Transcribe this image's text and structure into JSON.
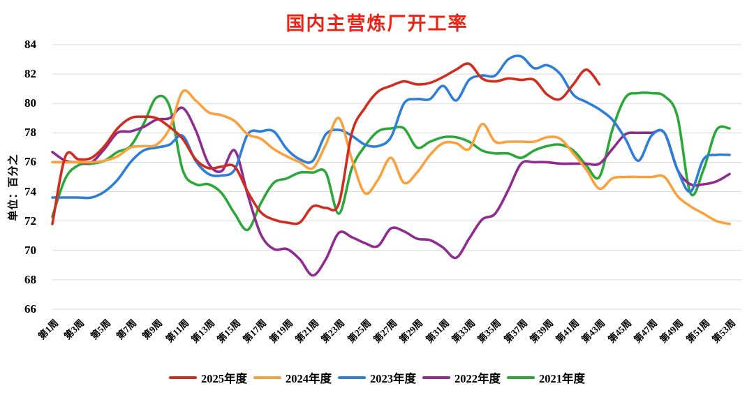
{
  "chart_data": {
    "type": "line",
    "title": "国内主营炼厂开工率",
    "title_color": "#ea2417",
    "ylabel": "单位：百分之",
    "ylim": [
      66,
      84
    ],
    "ytick_step": 2,
    "grid": "horizontal",
    "gridline_color": "#d9d9d9",
    "legend_position": "bottom",
    "weeks_total": 53,
    "x_start_week": 1,
    "xtick_labels": [
      "第1周",
      "第3周",
      "第5周",
      "第7周",
      "第9周",
      "第11周",
      "第13周",
      "第15周",
      "第17周",
      "第19周",
      "第21周",
      "第23周",
      "第25周",
      "第27周",
      "第29周",
      "第31周",
      "第33周",
      "第35周",
      "第37周",
      "第39周",
      "第41周",
      "第43周",
      "第45周",
      "第47周",
      "第49周",
      "第51周",
      "第53周"
    ],
    "series": [
      {
        "name": "2025年度",
        "color": "#d02d21",
        "values": [
          71.8,
          76.4,
          76.2,
          76.3,
          77.1,
          78.3,
          79.0,
          79.1,
          79.0,
          78.4,
          77.6,
          76.2,
          75.6,
          75.7,
          75.7,
          74.0,
          72.6,
          72.1,
          71.9,
          71.9,
          73.0,
          72.9,
          73.2,
          78.0,
          79.7,
          80.8,
          81.2,
          81.5,
          81.3,
          81.4,
          81.8,
          82.3,
          82.7,
          81.7,
          81.5,
          81.7,
          81.6,
          81.6,
          80.6,
          80.3,
          81.3,
          82.3,
          81.3
        ]
      },
      {
        "name": "2024年度",
        "color": "#f9a13c",
        "values": [
          76.0,
          76.0,
          76.0,
          76.0,
          76.1,
          76.4,
          77.0,
          77.1,
          77.2,
          78.3,
          80.8,
          80.2,
          79.4,
          79.2,
          78.8,
          77.9,
          77.6,
          76.9,
          76.4,
          76.0,
          75.6,
          77.2,
          79.0,
          76.2,
          73.9,
          74.8,
          76.3,
          74.6,
          75.3,
          76.5,
          77.3,
          77.3,
          76.9,
          78.6,
          77.4,
          77.4,
          77.4,
          77.4,
          77.7,
          77.6,
          76.6,
          75.5,
          74.2,
          74.9,
          75.0,
          75.0,
          75.0,
          75.0,
          73.7,
          73.0,
          72.5,
          72.0,
          71.8
        ]
      },
      {
        "name": "2023年度",
        "color": "#2e7ed8",
        "values": [
          73.6,
          73.6,
          73.6,
          73.6,
          74.0,
          74.8,
          76.0,
          76.8,
          77.0,
          77.2,
          77.8,
          76.1,
          75.2,
          75.1,
          75.5,
          77.9,
          78.1,
          78.1,
          76.9,
          76.2,
          76.1,
          77.9,
          78.2,
          77.8,
          77.2,
          77.1,
          77.7,
          80.0,
          80.3,
          80.3,
          81.2,
          80.2,
          81.6,
          81.9,
          81.9,
          83.0,
          83.2,
          82.4,
          82.6,
          82.0,
          80.6,
          80.1,
          79.6,
          78.9,
          77.6,
          76.1,
          77.8,
          78.0,
          75.5,
          74.0,
          76.2,
          76.5,
          76.5
        ]
      },
      {
        "name": "2022年度",
        "color": "#8e2c90",
        "values": [
          76.7,
          76.1,
          76.0,
          76.0,
          76.9,
          78.0,
          78.1,
          78.4,
          78.9,
          79.0,
          79.7,
          78.2,
          75.9,
          75.4,
          76.8,
          73.8,
          71.1,
          70.1,
          70.1,
          69.4,
          68.3,
          69.4,
          71.2,
          70.9,
          70.5,
          70.3,
          71.5,
          71.3,
          70.8,
          70.7,
          70.2,
          69.5,
          70.8,
          72.1,
          72.5,
          74.1,
          75.9,
          76.0,
          76.0,
          75.9,
          75.9,
          75.9,
          75.9,
          76.9,
          77.9,
          78.0,
          78.0,
          78.0,
          75.5,
          74.5,
          74.5,
          74.7,
          75.2
        ]
      },
      {
        "name": "2021年度",
        "color": "#2ca83a",
        "values": [
          72.3,
          74.9,
          75.8,
          75.9,
          76.1,
          76.7,
          77.1,
          78.6,
          80.4,
          79.8,
          75.5,
          74.5,
          74.5,
          73.9,
          72.5,
          71.4,
          73.2,
          74.6,
          74.9,
          75.3,
          75.3,
          75.3,
          72.5,
          75.6,
          77.1,
          78.1,
          78.3,
          78.3,
          77.0,
          77.4,
          77.7,
          77.7,
          77.4,
          76.8,
          76.6,
          76.6,
          76.3,
          76.8,
          77.1,
          77.2,
          76.8,
          75.8,
          75.0,
          78.2,
          80.4,
          80.7,
          80.7,
          80.5,
          79.1,
          73.9,
          75.5,
          78.2,
          78.3
        ]
      }
    ]
  }
}
